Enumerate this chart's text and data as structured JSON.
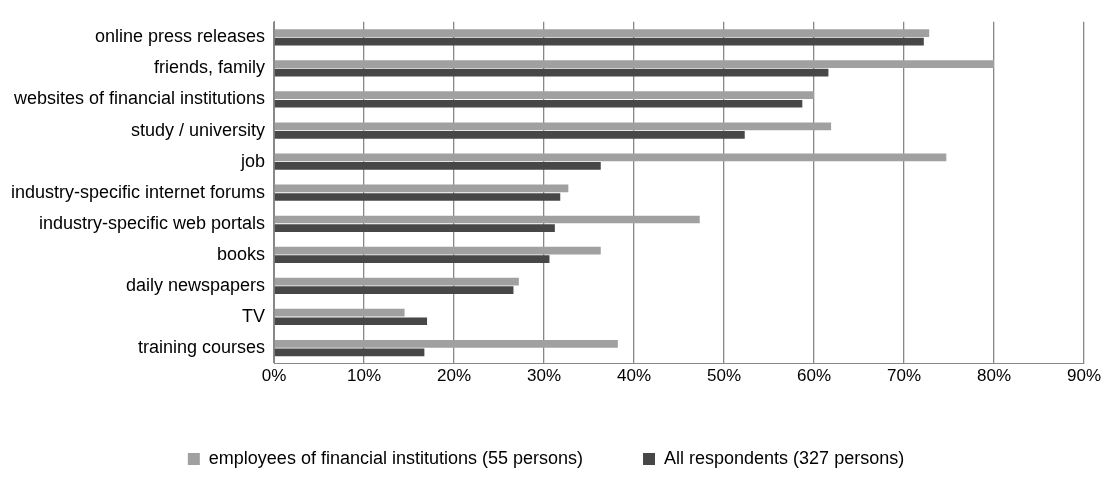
{
  "chart_data": {
    "type": "bar",
    "orientation": "horizontal",
    "categories": [
      "online press releases",
      "friends, family",
      "websites of financial institutions",
      "study / university",
      "job",
      "industry-specific internet forums",
      "industry-specific web portals",
      "books",
      "daily newspapers",
      "TV",
      "training courses"
    ],
    "series": [
      {
        "name": "employees of financial institutions (55 persons)",
        "color": "#a0a0a0",
        "values": [
          72.8,
          80,
          60,
          61.9,
          74.7,
          32.7,
          47.3,
          36.3,
          27.2,
          14.5,
          38.2
        ]
      },
      {
        "name": "All respondents (327 persons)",
        "color": "#474747",
        "values": [
          72.2,
          61.6,
          58.7,
          52.3,
          36.3,
          31.8,
          31.2,
          30.6,
          26.6,
          17.0,
          16.7
        ]
      }
    ],
    "xlim": [
      0,
      90
    ],
    "xticks": [
      {
        "value": 0,
        "label": "0%"
      },
      {
        "value": 10,
        "label": "10%"
      },
      {
        "value": 20,
        "label": "20%"
      },
      {
        "value": 30,
        "label": "30%"
      },
      {
        "value": 40,
        "label": "40%"
      },
      {
        "value": 50,
        "label": "50%"
      },
      {
        "value": 60,
        "label": "60%"
      },
      {
        "value": 70,
        "label": "70%"
      },
      {
        "value": 80,
        "label": "80%"
      },
      {
        "value": 90,
        "label": "90%"
      }
    ],
    "grid": "x",
    "legend": "bottom"
  }
}
